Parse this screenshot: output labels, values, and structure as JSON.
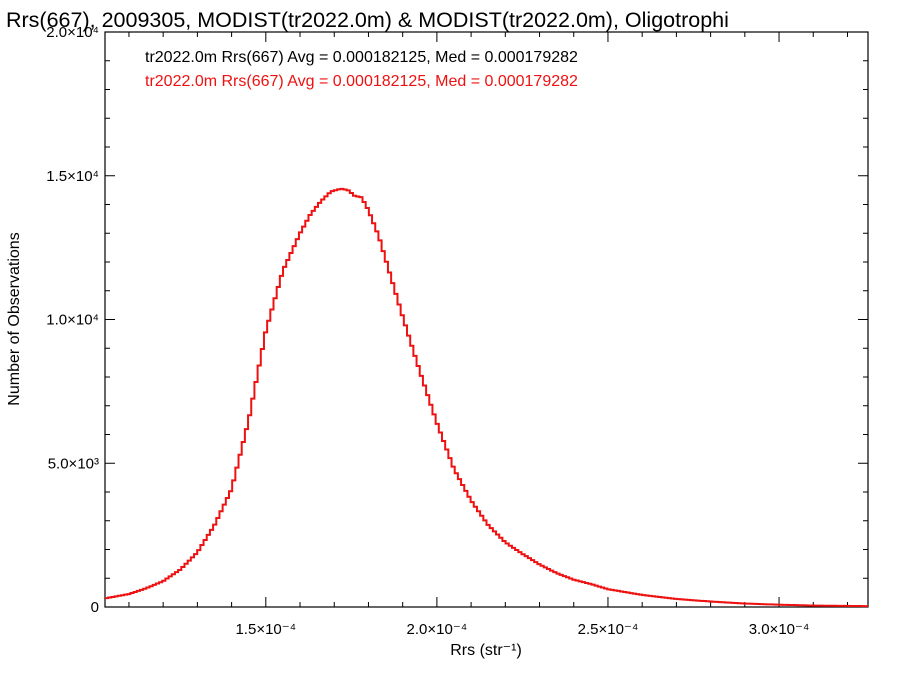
{
  "chart_data": {
    "type": "histogram",
    "title": "Rrs(667), 2009305, MODIST(tr2022.0m) & MODIST(tr2022.0m), Oligotrophi",
    "xlabel": "Rrs (str⁻¹)",
    "ylabel": "Number of Observations",
    "xlim": [
      0.000103,
      0.000326
    ],
    "ylim": [
      0,
      20000
    ],
    "x_ticks": [
      {
        "value": 0.00015,
        "label": "1.5×10⁻⁴"
      },
      {
        "value": 0.0002,
        "label": "2.0×10⁻⁴"
      },
      {
        "value": 0.00025,
        "label": "2.5×10⁻⁴"
      },
      {
        "value": 0.0003,
        "label": "3.0×10⁻⁴"
      }
    ],
    "y_ticks": [
      {
        "value": 0,
        "label": "0"
      },
      {
        "value": 5000,
        "label": "5.0×10³"
      },
      {
        "value": 10000,
        "label": "1.0×10⁴"
      },
      {
        "value": 15000,
        "label": "1.5×10⁴"
      },
      {
        "value": 20000,
        "label": "2.0×10⁴"
      }
    ],
    "annotations": [
      {
        "text": "tr2022.0m Rrs(667) Avg = 0.000182125, Med = 0.000179282",
        "color": "#000000"
      },
      {
        "text": "tr2022.0m Rrs(667) Avg = 0.000182125, Med = 0.000179282",
        "color": "#ee1111"
      }
    ],
    "series": [
      {
        "color": "#ee1111",
        "x": [
          0.000103,
          0.00011,
          0.000115,
          0.00012,
          0.000125,
          0.00013,
          0.000135,
          0.00014,
          0.000145,
          0.00015,
          0.000155,
          0.00016,
          0.000163,
          0.000166,
          0.000169,
          0.000172,
          0.000174,
          0.000176,
          0.000178,
          0.00018,
          0.000183,
          0.000186,
          0.00019,
          0.000195,
          0.0002,
          0.000205,
          0.00021,
          0.000215,
          0.00022,
          0.000225,
          0.00023,
          0.000235,
          0.00024,
          0.000245,
          0.00025,
          0.00026,
          0.00027,
          0.00028,
          0.00029,
          0.0003,
          0.00031,
          0.000326
        ],
        "y": [
          300,
          450,
          650,
          900,
          1300,
          1900,
          2850,
          4100,
          6500,
          9600,
          11700,
          13000,
          13650,
          14100,
          14450,
          14550,
          14500,
          14300,
          14250,
          13800,
          12900,
          11700,
          10100,
          8200,
          6400,
          4800,
          3700,
          2850,
          2250,
          1850,
          1480,
          1180,
          950,
          800,
          620,
          420,
          280,
          190,
          120,
          80,
          50,
          30
        ]
      }
    ]
  }
}
